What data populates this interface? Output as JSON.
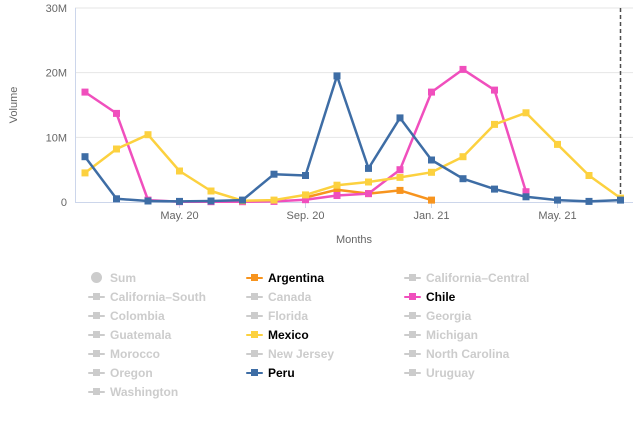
{
  "chart_data": {
    "type": "line",
    "xlabel": "Months",
    "ylabel": "Volume",
    "x": [
      "Feb. 20",
      "Mar. 20",
      "Apr. 20",
      "May. 20",
      "Jun. 20",
      "Jul. 20",
      "Aug. 20",
      "Sep. 20",
      "Oct. 20",
      "Nov. 20",
      "Dec. 20",
      "Jan. 21",
      "Feb. 21",
      "Mar. 21",
      "Apr. 21",
      "May. 21",
      "Jun. 21",
      "Jul. 21"
    ],
    "x_ticks_shown": [
      "May. 20",
      "Sep. 20",
      "Jan. 21",
      "May. 21"
    ],
    "x_tick_indices": [
      3,
      7,
      11,
      15
    ],
    "y_ticks": [
      {
        "value": 0,
        "label": "0"
      },
      {
        "value": 10000000,
        "label": "10M"
      },
      {
        "value": 20000000,
        "label": "20M"
      },
      {
        "value": 30000000,
        "label": "30M"
      }
    ],
    "ylim": [
      0,
      30000000
    ],
    "grid": true,
    "legend_position": "bottom",
    "series": [
      {
        "name": "Argentina",
        "color": "#f7941e",
        "values": [
          null,
          null,
          null,
          null,
          null,
          null,
          null,
          700000,
          1900000,
          1300000,
          1800000,
          300000,
          null,
          null,
          null,
          null,
          null,
          null
        ]
      },
      {
        "name": "Chile",
        "color": "#f04fbd",
        "values": [
          17000000,
          13700000,
          300000,
          50000,
          50000,
          50000,
          100000,
          350000,
          1000000,
          1300000,
          5000000,
          17000000,
          20500000,
          17300000,
          1600000,
          null,
          null,
          null
        ]
      },
      {
        "name": "Mexico",
        "color": "#fcd13f",
        "values": [
          4500000,
          8200000,
          10400000,
          4800000,
          1700000,
          200000,
          300000,
          1100000,
          2600000,
          3100000,
          3800000,
          4600000,
          7000000,
          12000000,
          13800000,
          8900000,
          4100000,
          600000
        ]
      },
      {
        "name": "Peru",
        "color": "#3e6da5",
        "values": [
          7000000,
          500000,
          150000,
          100000,
          150000,
          300000,
          4300000,
          4100000,
          19500000,
          5200000,
          13000000,
          6500000,
          3600000,
          2000000,
          800000,
          300000,
          100000,
          300000
        ]
      }
    ],
    "annotation": {
      "type": "vertical-dashed-line",
      "x": "Jul. 21",
      "x_index": 17,
      "color": "#4d4d4d"
    }
  },
  "legend": {
    "inactive_color": "#cccccc",
    "columns": [
      [
        {
          "label": "Sum",
          "icon": "circle",
          "active": false
        },
        {
          "label": "California–South",
          "icon": "line-marker",
          "active": false
        },
        {
          "label": "Colombia",
          "icon": "line-marker",
          "active": false
        },
        {
          "label": "Guatemala",
          "icon": "line-marker",
          "active": false
        },
        {
          "label": "Morocco",
          "icon": "line-marker",
          "active": false
        },
        {
          "label": "Oregon",
          "icon": "line-marker",
          "active": false
        },
        {
          "label": "Washington",
          "icon": "line-marker",
          "active": false
        }
      ],
      [
        {
          "label": "Argentina",
          "icon": "line-marker",
          "active": true,
          "color": "#f7941e"
        },
        {
          "label": "Canada",
          "icon": "line-marker",
          "active": false
        },
        {
          "label": "Florida",
          "icon": "line-marker",
          "active": false
        },
        {
          "label": "Mexico",
          "icon": "line-marker",
          "active": true,
          "color": "#fcd13f"
        },
        {
          "label": "New Jersey",
          "icon": "line-marker",
          "active": false
        },
        {
          "label": "Peru",
          "icon": "line-marker",
          "active": true,
          "color": "#3e6da5"
        }
      ],
      [
        {
          "label": "California–Central",
          "icon": "line-marker",
          "active": false
        },
        {
          "label": "Chile",
          "icon": "line-marker",
          "active": true,
          "color": "#f04fbd"
        },
        {
          "label": "Georgia",
          "icon": "line-marker",
          "active": false
        },
        {
          "label": "Michigan",
          "icon": "line-marker",
          "active": false
        },
        {
          "label": "North Carolina",
          "icon": "line-marker",
          "active": false
        },
        {
          "label": "Uruguay",
          "icon": "line-marker",
          "active": false
        }
      ]
    ]
  }
}
